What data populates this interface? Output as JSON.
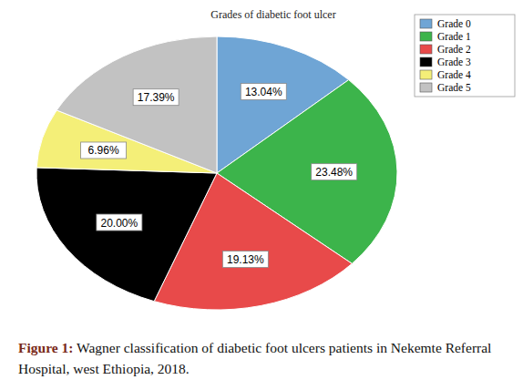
{
  "chart_data": {
    "type": "pie",
    "title": "Grades of diabetic foot ulcer",
    "categories": [
      "Grade 0",
      "Grade 1",
      "Grade 2",
      "Grade 3",
      "Grade 4",
      "Grade 5"
    ],
    "values": [
      13.04,
      23.48,
      19.13,
      20.0,
      6.96,
      17.39
    ],
    "value_labels": [
      "13.04%",
      "23.48%",
      "19.13%",
      "20.00%",
      "6.96%",
      "17.39%"
    ],
    "colors": [
      "#6fa5d5",
      "#3cb44b",
      "#e84a4a",
      "#000000",
      "#f4ef78",
      "#c2c2c2"
    ],
    "data_labels": true,
    "legend": "top-right"
  },
  "caption": {
    "label": "Figure 1:",
    "text": "Wagner classification of diabetic foot ulcers patients in Nekemte Referral Hospital, west Ethiopia, 2018."
  }
}
